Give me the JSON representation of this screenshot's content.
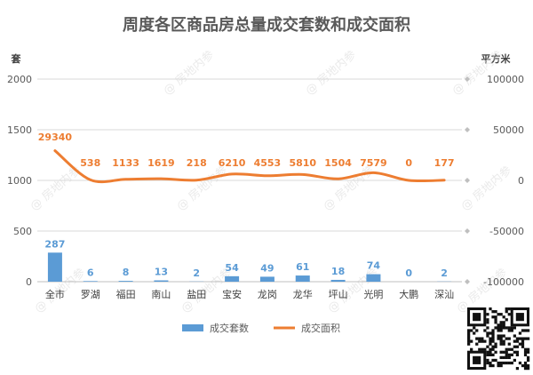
{
  "chart_data": {
    "type": "bar",
    "title": "周度各区商品房总量成交套数和成交面积",
    "categories": [
      "全市",
      "罗湖",
      "福田",
      "南山",
      "盐田",
      "宝安",
      "龙岗",
      "龙华",
      "坪山",
      "光明",
      "大鹏",
      "深汕"
    ],
    "series": [
      {
        "name": "成交套数",
        "type": "bar",
        "axis": "left",
        "color": "#5b9bd5",
        "values": [
          287,
          6,
          8,
          13,
          2,
          54,
          49,
          61,
          18,
          74,
          0,
          2
        ]
      },
      {
        "name": "成交面积",
        "type": "line",
        "axis": "right",
        "color": "#ed7d31",
        "values": [
          29340,
          538,
          1133,
          1619,
          218,
          6210,
          4553,
          5810,
          1504,
          7579,
          0,
          177
        ]
      }
    ],
    "y_left": {
      "label": "套",
      "min": 0,
      "max": 2000,
      "ticks": [
        "0",
        "500",
        "1000",
        "1500",
        "2000"
      ]
    },
    "y_right": {
      "label": "平方米",
      "min": -100000,
      "max": 100000,
      "ticks": [
        "-100000",
        "-50000",
        "0",
        "50000",
        "100000"
      ]
    },
    "grid": true,
    "legend": "bottom"
  },
  "watermark": "房地内参"
}
